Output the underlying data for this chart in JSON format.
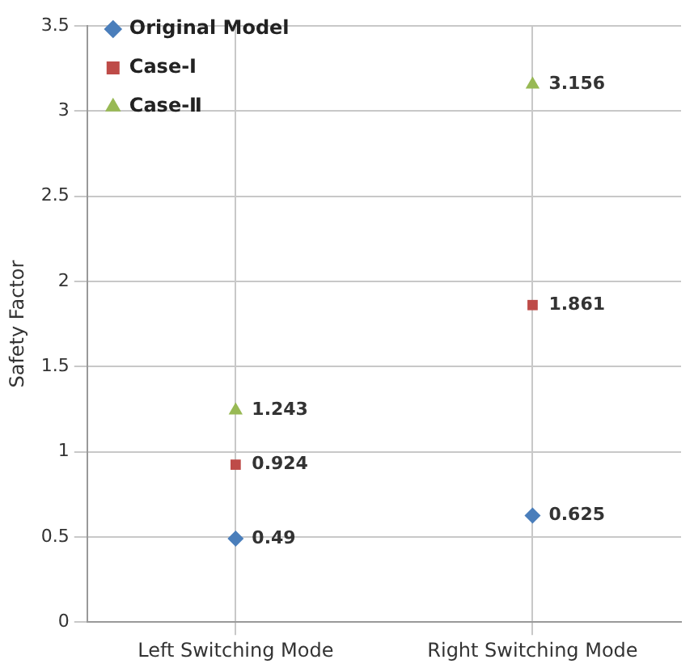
{
  "chart_data": {
    "type": "scatter",
    "ylabel": "Safety Factor",
    "categories": [
      "Left Switching Mode",
      "Right Switching Mode"
    ],
    "series": [
      {
        "name": "Original Model",
        "color": "#4a7ebb",
        "marker": "diamond",
        "values": [
          0.49,
          0.625
        ]
      },
      {
        "name": "Case-I",
        "color": "#be4b48",
        "marker": "square",
        "values": [
          0.924,
          1.861
        ]
      },
      {
        "name": "Case-Ⅱ",
        "color": "#98b954",
        "marker": "triangle",
        "values": [
          1.243,
          3.156
        ]
      }
    ],
    "ylim": [
      0,
      3.5
    ],
    "yticks": [
      0,
      0.5,
      1,
      1.5,
      2,
      2.5,
      3,
      3.5
    ],
    "grid": true,
    "legend": "top left",
    "data_labels": true
  }
}
